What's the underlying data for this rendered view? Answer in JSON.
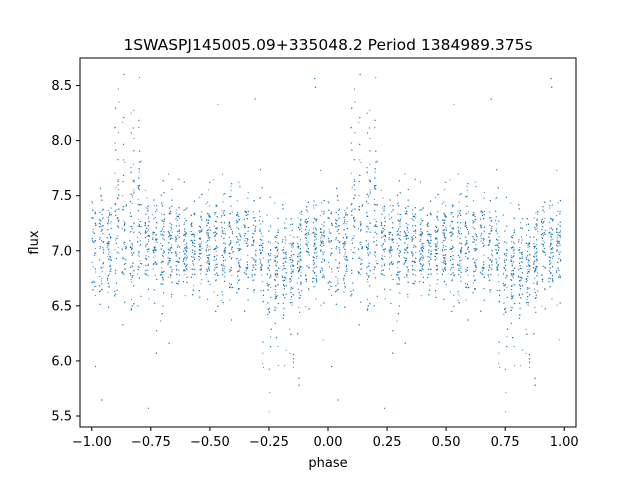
{
  "chart_data": {
    "type": "scatter",
    "title": "1SWASPJ145005.09+335048.2 Period 1384989.375s",
    "xlabel": "phase",
    "ylabel": "flux",
    "xlim": [
      -1.05,
      1.05
    ],
    "ylim": [
      5.4,
      8.75
    ],
    "xticks": [
      -1.0,
      -0.75,
      -0.5,
      -0.25,
      0.0,
      0.25,
      0.5,
      0.75,
      1.0
    ],
    "xtick_labels": [
      "−1.00",
      "−0.75",
      "−0.50",
      "−0.25",
      "0.00",
      "0.25",
      "0.50",
      "0.75",
      "1.00"
    ],
    "yticks": [
      5.5,
      6.0,
      6.5,
      7.0,
      7.5,
      8.0,
      8.5
    ],
    "ytick_labels": [
      "5.5",
      "6.0",
      "6.5",
      "7.0",
      "7.5",
      "8.0",
      "8.5"
    ],
    "grid": false,
    "marker_color": "#1f77b4",
    "series": [
      {
        "x_range": [
          -1.0,
          1.0
        ],
        "y_median": 7.05,
        "y_core_spread": [
          6.6,
          7.55
        ],
        "y_outlier_range": [
          5.5,
          8.6
        ],
        "mirrored_halves": true,
        "peak_flux_phases": [
          -0.85,
          0.15
        ],
        "low_flux_phases": [
          -0.2,
          0.8
        ]
      }
    ]
  }
}
